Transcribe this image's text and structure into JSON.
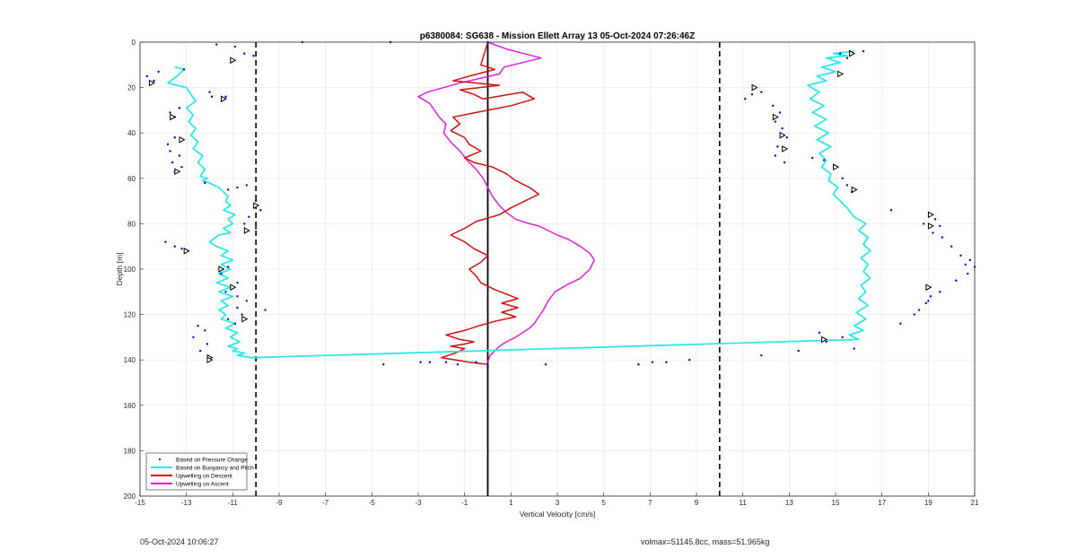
{
  "footer": {
    "timestamp": "05-Oct-2024 10:06:27",
    "mass_info": "volmax=51145.8cc, mass=51.965kg"
  },
  "chart_data": {
    "type": "line",
    "title": "p6380084: SG638 - Mission Ellett Array 13 05-Oct-2024 07:26:46Z",
    "xlabel": "Vertical Velocity [cm/s]",
    "ylabel": "Depth [m]",
    "xlim": [
      -15,
      21
    ],
    "ylim": [
      0,
      200
    ],
    "y_reversed": true,
    "grid": true,
    "legend_position": "bottom-left",
    "xticks": [
      -15,
      -13,
      -11,
      -9,
      -7,
      -5,
      -3,
      -1,
      1,
      3,
      5,
      7,
      9,
      11,
      13,
      15,
      17,
      19,
      21
    ],
    "yticks": [
      0,
      20,
      40,
      60,
      80,
      100,
      120,
      140,
      160,
      180,
      200
    ],
    "reference_lines": {
      "dashed_x": [
        -10,
        10
      ],
      "solid_x": [
        0
      ]
    },
    "colors": {
      "pressure": "#0000cc",
      "buoyancy": "#33e6e6",
      "descent": "#cc1111",
      "ascent": "#dd22dd",
      "reference": "#000000"
    },
    "series": [
      {
        "name": "Based on Pressure Change",
        "style": "dots",
        "x": [
          0,
          -4.2,
          -8,
          -11.7,
          -10.9,
          -10.5,
          -10.1,
          -14.2,
          -14.7,
          -14.4,
          -13.1,
          -12.0,
          -11.9,
          -11.3,
          -13.7,
          -13.5,
          -13.3,
          -13.8,
          -13.5,
          -13.7,
          -13.3,
          -13.6,
          -13.2,
          -13.5,
          -12.2,
          -11.2,
          -10.8,
          -10.4,
          -10.0,
          -9.8,
          -10.5,
          -10.3,
          -10.0,
          -13.9,
          -13.5,
          -13.2,
          -11.2,
          -11.5,
          -10.8,
          -11.3,
          -10.8,
          -10.4,
          -10.8,
          -9.6,
          -11.2,
          -10.6,
          -10.9,
          -12.5,
          -12.2,
          -12.7,
          -12.1,
          -12.4,
          -12.0,
          -2.9,
          -2.5,
          -1.8,
          -1.3,
          -0.5,
          0,
          -4.5,
          2.5,
          6.5,
          7.1,
          7.7,
          8.7,
          10.0,
          11.8,
          13.4,
          14.6,
          15.3,
          14.3,
          15.2,
          15.7,
          16.2,
          15.5,
          11.4,
          11.1,
          11.8,
          12.3,
          12.6,
          12.4,
          12.7,
          12.9,
          12.5,
          12.4,
          12.8,
          14.0,
          14.5,
          15.0,
          15.3,
          15.5,
          15.7,
          17.4,
          18.8,
          19.2,
          19.5,
          19.3,
          19.6,
          20.0,
          20.4,
          20.8,
          20.6,
          21.0,
          20.7,
          20.2,
          19.5,
          19.1,
          18.9,
          18.6,
          19.0,
          18.4,
          17.8,
          15.8
        ],
        "y": [
          0,
          0,
          0,
          1,
          2,
          5,
          6,
          13,
          15,
          17,
          12,
          22,
          24,
          24,
          31,
          33,
          29,
          45,
          42,
          48,
          50,
          53,
          55,
          57,
          62,
          65,
          64,
          63,
          70,
          74,
          80,
          77,
          82,
          88,
          90,
          91,
          99,
          102,
          106,
          110,
          112,
          114,
          117,
          118,
          122,
          120,
          124,
          125,
          127,
          130,
          133,
          136,
          139,
          141,
          141,
          141,
          142,
          141,
          143,
          142,
          142,
          142,
          141,
          141,
          140,
          139,
          138,
          136,
          132,
          130,
          128,
          5,
          5,
          4,
          7,
          23,
          25,
          22,
          28,
          31,
          35,
          38,
          42,
          46,
          50,
          53,
          51,
          52,
          55,
          60,
          63,
          66,
          74,
          80,
          84,
          81,
          78,
          86,
          90,
          94,
          96,
          98,
          99,
          102,
          105,
          110,
          112,
          115,
          118,
          114,
          120,
          124,
          135
        ]
      },
      {
        "name": "Based on Buoyancy and Pitch",
        "style": "line",
        "x": [
          -13.5,
          -13.1,
          -13.4,
          -13.8,
          -13.0,
          -12.8,
          -12.6,
          -13.0,
          -12.7,
          -12.9,
          -12.6,
          -12.8,
          -12.5,
          -12.7,
          -12.3,
          -12.5,
          -12.2,
          -12.4,
          -12.1,
          -12.3,
          -12.0,
          -11.6,
          -11.4,
          -11.2,
          -11.3,
          -11.1,
          -11.4,
          -10.9,
          -11.2,
          -11.0,
          -11.4,
          -11.1,
          -11.6,
          -12.0,
          -11.7,
          -11.2,
          -11.5,
          -11.0,
          -11.5,
          -11.1,
          -11.6,
          -11.2,
          -11.7,
          -11.1,
          -11.6,
          -11.0,
          -11.5,
          -11.2,
          -11.6,
          -11.3,
          -11.5,
          -10.9,
          -11.3,
          -10.8,
          -11.1,
          -10.7,
          -11.2,
          -10.8,
          -11.0,
          -10.5,
          -10.8,
          -10.2,
          16.0,
          15.6,
          16.2,
          15.8,
          16.3,
          15.9,
          16.4,
          16.0,
          16.3,
          16.1,
          16.5,
          16.2,
          16.4,
          16.1,
          16.5,
          16.2,
          16.4,
          16.0,
          16.3,
          15.8,
          15.5,
          15.2,
          14.9,
          15.1,
          14.7,
          14.8,
          14.4,
          14.6,
          14.3,
          14.8,
          14.2,
          14.7,
          14.1,
          14.6,
          14.0,
          14.5,
          13.9,
          14.3,
          13.8,
          14.6,
          14.2,
          15.0,
          14.4,
          15.2,
          14.6,
          15.5,
          14.9,
          15.8
        ],
        "y": [
          11,
          12,
          15,
          18,
          20,
          23,
          26,
          29,
          32,
          35,
          38,
          41,
          44,
          47,
          50,
          53,
          56,
          59,
          60,
          61,
          62,
          64,
          66,
          68,
          70,
          72,
          74,
          76,
          78,
          80,
          82,
          84,
          85,
          88,
          90,
          92,
          94,
          96,
          98,
          100,
          102,
          104,
          106,
          108,
          110,
          112,
          114,
          116,
          118,
          120,
          122,
          124,
          126,
          128,
          130,
          132,
          134,
          135,
          136,
          137,
          138,
          139,
          131,
          129,
          127,
          125,
          122,
          119,
          116,
          113,
          110,
          107,
          104,
          101,
          98,
          95,
          92,
          89,
          86,
          83,
          80,
          77,
          73,
          70,
          67,
          64,
          61,
          58,
          55,
          52,
          49,
          46,
          43,
          40,
          37,
          34,
          31,
          28,
          25,
          22,
          19,
          17,
          15,
          13,
          11,
          9,
          7,
          6,
          5,
          4
        ]
      },
      {
        "name": "Upwelling on Descent",
        "style": "line",
        "x": [
          0,
          -0.3,
          0.3,
          -0.8,
          -1.5,
          0.5,
          -1.2,
          -0.6,
          -0.2,
          1.5,
          2.0,
          1.0,
          -0.5,
          -1.5,
          -1.2,
          -1.6,
          -1.0,
          -0.8,
          -0.3,
          -1.0,
          -0.6,
          0.2,
          0.8,
          1.2,
          1.8,
          2.2,
          1.6,
          1.0,
          0.5,
          -0.5,
          -1.0,
          -1.6,
          -1.0,
          -0.6,
          0.0,
          -0.3,
          -0.8,
          -0.5,
          -0.3,
          0.3,
          0.8,
          1.3,
          0.6,
          1.3,
          0.6,
          1.2,
          0.3,
          -0.4,
          -1.0,
          -1.8,
          -1.2,
          -0.6,
          -1.0,
          -1.6,
          -1.0,
          -1.4,
          -2.0,
          -0.8,
          0
        ],
        "y": [
          0,
          10,
          12,
          15,
          17,
          19,
          21,
          23,
          25,
          22,
          25,
          28,
          31,
          33,
          36,
          39,
          42,
          45,
          48,
          51,
          53,
          55,
          58,
          61,
          64,
          67,
          70,
          73,
          76,
          79,
          82,
          85,
          88,
          91,
          94,
          97,
          100,
          103,
          106,
          109,
          111,
          113,
          115,
          117,
          119,
          121,
          123,
          125,
          127,
          129,
          131,
          132,
          133,
          134,
          135,
          137,
          139,
          141,
          142
        ]
      },
      {
        "name": "Upwelling on Ascent",
        "style": "line",
        "x": [
          0,
          0.8,
          2.3,
          0.7,
          0.5,
          -1.2,
          -2.6,
          -3.0,
          -2.5,
          -2.3,
          -2.1,
          -1.8,
          -1.9,
          -1.6,
          -1.2,
          -0.9,
          -0.5,
          -0.2,
          0.0,
          0.2,
          0.5,
          0.8,
          1.2,
          1.5,
          1.8,
          2.2,
          2.6,
          3.0,
          3.5,
          4.0,
          4.4,
          4.6,
          4.4,
          4.0,
          3.4,
          2.9,
          2.6,
          2.4,
          2.2,
          2.0,
          1.8,
          1.5,
          1.2,
          0.8,
          0.5,
          0.3,
          0.1,
          0
        ],
        "y": [
          0,
          3,
          7,
          11,
          14,
          18,
          22,
          24,
          27,
          30,
          33,
          36,
          40,
          44,
          48,
          52,
          56,
          60,
          64,
          68,
          72,
          75,
          78,
          79,
          80,
          81,
          83,
          85,
          87,
          90,
          93,
          96,
          100,
          104,
          107,
          110,
          114,
          118,
          121,
          124,
          126,
          128,
          130,
          132,
          134,
          136,
          138,
          141
        ]
      }
    ],
    "markers": {
      "style": "triangle-right",
      "x": [
        -14.5,
        -13.6,
        -13.2,
        -13.4,
        -11.0,
        -11.4,
        -10.0,
        -10.4,
        -13.0,
        -11.5,
        -11.0,
        -10.5,
        -12.0,
        -12.0,
        14.5,
        15.7,
        15.2,
        11.5,
        12.4,
        12.7,
        12.8,
        15.0,
        15.8,
        19.1,
        19.1,
        19.0
      ],
      "y": [
        18,
        33,
        43,
        57,
        8,
        25,
        72,
        83,
        92,
        100,
        108,
        122,
        139,
        140,
        131,
        5,
        14,
        20,
        33,
        41,
        47,
        55,
        65,
        76,
        81,
        108
      ]
    }
  }
}
